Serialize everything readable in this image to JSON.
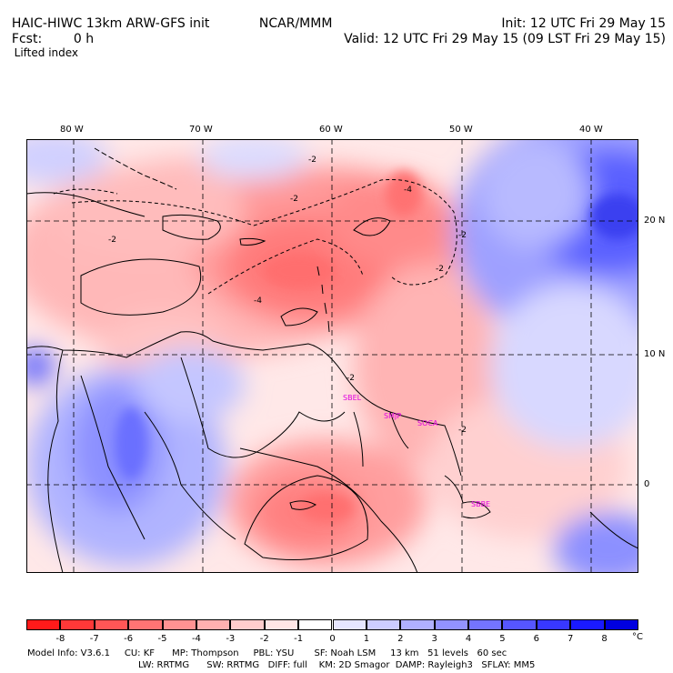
{
  "header": {
    "model": "HAIC-HIWC 13km ARW-GFS init",
    "org": "NCAR/MMM",
    "init": "Init: 12 UTC Fri 29 May 15",
    "fcst_label": "Fcst:",
    "fcst_value": "0 h",
    "valid": "Valid: 12 UTC Fri 29 May 15 (09 LST Fri 29 May 15)",
    "field": "Lifted index"
  },
  "axes": {
    "lon_labels": [
      "80 W",
      "70 W",
      "60 W",
      "50 W",
      "40 W"
    ],
    "lat_labels": [
      "20 N",
      "10 N",
      "0"
    ]
  },
  "stations": [
    "SBEL",
    "SMJP",
    "SOCA",
    "SBBE"
  ],
  "contour_labels": [
    "-2",
    "-4"
  ],
  "colorbar": {
    "ticks": [
      "-8",
      "-7",
      "-6",
      "-5",
      "-4",
      "-3",
      "-2",
      "-1",
      "0",
      "1",
      "2",
      "3",
      "4",
      "5",
      "6",
      "7",
      "8"
    ],
    "unit": "°C",
    "colors": [
      "#ff1a1a",
      "#ff3838",
      "#ff5656",
      "#ff7474",
      "#ff9292",
      "#ffb0b0",
      "#ffcccc",
      "#ffe6e6",
      "#ffffff",
      "#e6e6ff",
      "#ccccff",
      "#b0b0ff",
      "#9292ff",
      "#7474ff",
      "#5656ff",
      "#3838ff",
      "#1a1aff",
      "#0000e0"
    ]
  },
  "footer": {
    "line1": "Model Info: V3.6.1     CU: KF      MP: Thompson     PBL: YSU       SF: Noah LSM     13 km   51 levels   60 sec",
    "line2": "LW: RRTMG      SW: RRTMG   DIFF: full    KM: 2D Smagor  DAMP: Rayleigh3   SFLAY: MM5"
  }
}
